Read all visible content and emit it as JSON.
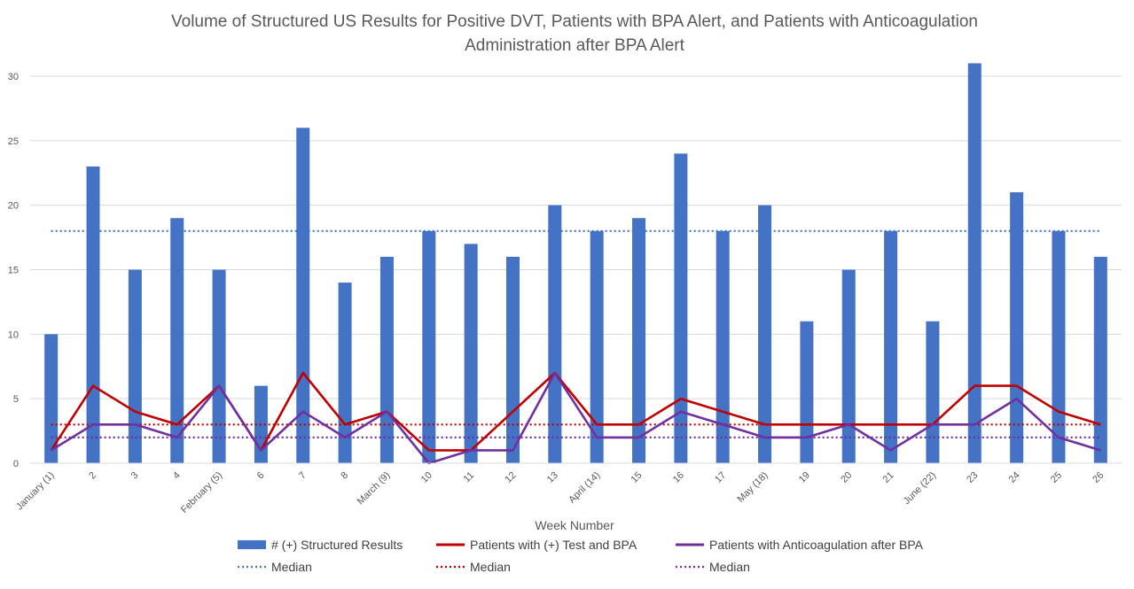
{
  "chart_data": {
    "type": "bar",
    "title_line1": "Volume of Structured US Results for Positive DVT, Patients with BPA Alert, and Patients with Anticoagulation",
    "title_line2": "Administration after BPA Alert",
    "xlabel": "Week Number",
    "ylabel": "",
    "ylim": [
      0,
      30
    ],
    "yticks": [
      "0",
      "5",
      "10",
      "15",
      "20",
      "25",
      "30"
    ],
    "grid": "horizontal",
    "legend_position": "bottom",
    "categories": [
      "January (1)",
      "2",
      "3",
      "4",
      "February (5)",
      "6",
      "7",
      "8",
      "March (9)",
      "10",
      "11",
      "12",
      "13",
      "April (14)",
      "15",
      "16",
      "17",
      "May (18)",
      "19",
      "20",
      "21",
      "June (22)",
      "23",
      "24",
      "25",
      "26"
    ],
    "series": [
      {
        "name": "# (+) Structured Results",
        "kind": "bar",
        "color": "#4472C4",
        "values": [
          10,
          23,
          15,
          19,
          15,
          6,
          26,
          14,
          16,
          18,
          17,
          16,
          20,
          18,
          19,
          24,
          18,
          20,
          11,
          15,
          18,
          11,
          31,
          21,
          18,
          16
        ]
      },
      {
        "name": "Patients with (+) Test and BPA",
        "kind": "line",
        "color": "#C00000",
        "values": [
          1,
          6,
          4,
          3,
          6,
          1,
          7,
          3,
          4,
          1,
          1,
          4,
          7,
          3,
          3,
          5,
          4,
          3,
          3,
          3,
          3,
          3,
          6,
          6,
          4,
          3
        ]
      },
      {
        "name": "Patients with Anticoagulation after BPA",
        "kind": "line",
        "color": "#7030A0",
        "values": [
          1,
          3,
          3,
          2,
          6,
          1,
          4,
          2,
          4,
          0,
          1,
          1,
          7,
          2,
          2,
          4,
          3,
          2,
          2,
          3,
          1,
          3,
          3,
          5,
          2,
          1
        ]
      }
    ],
    "medians": [
      {
        "name": "Median",
        "value": 18,
        "color": "#4472C4"
      },
      {
        "name": "Median",
        "value": 3,
        "color": "#C00000"
      },
      {
        "name": "Median",
        "value": 2,
        "color": "#7030A0"
      }
    ]
  }
}
